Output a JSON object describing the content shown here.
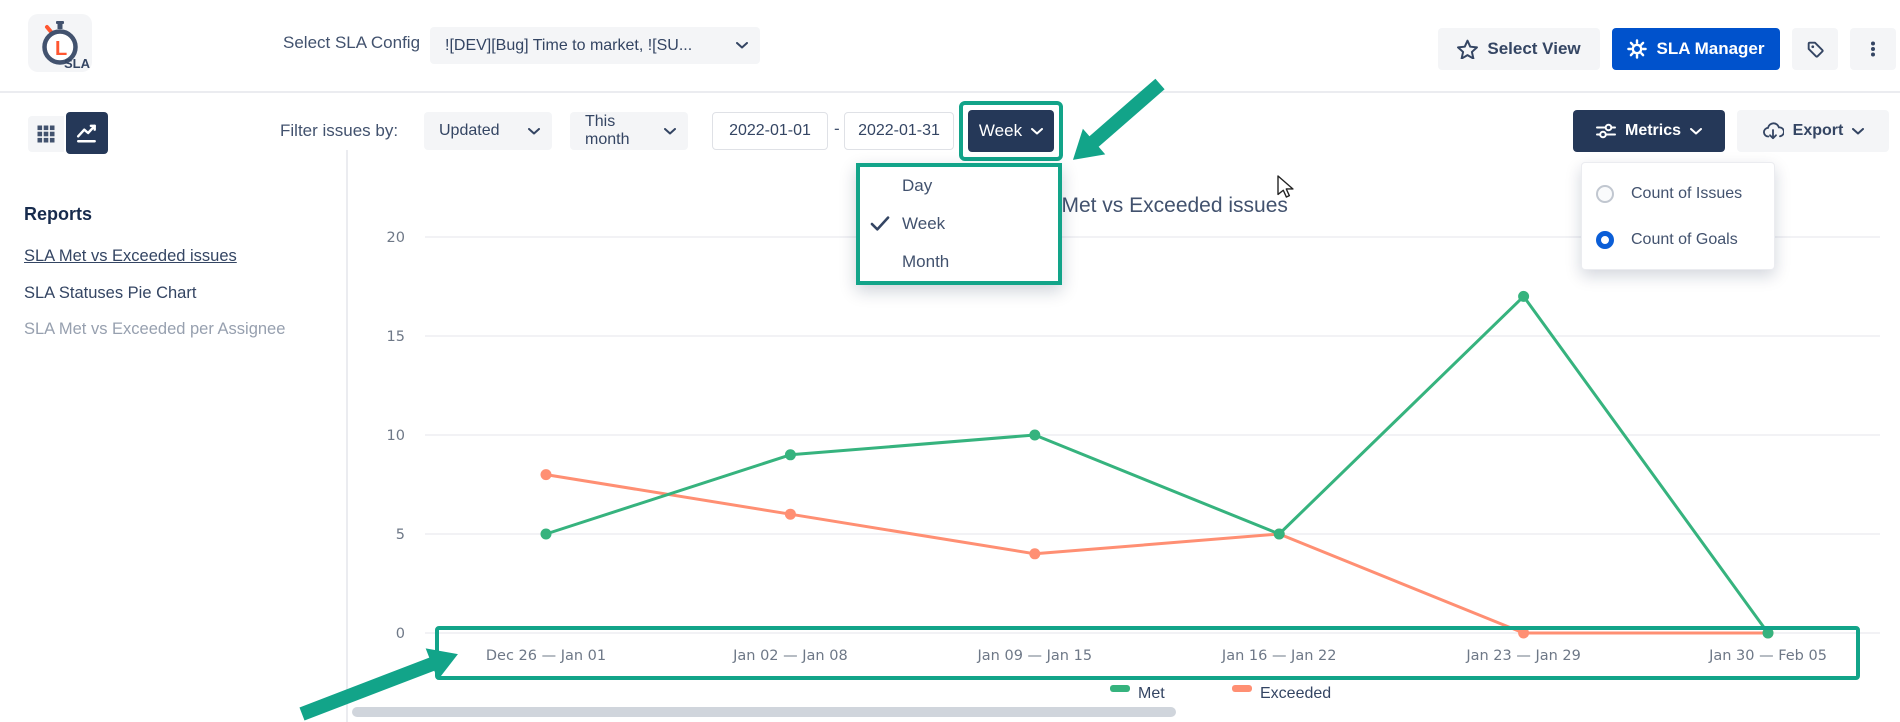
{
  "header": {
    "logo_letter": "L",
    "logo_text": "SLA",
    "config_label": "Select SLA Config",
    "config_value": "![DEV][Bug] Time to market, ![SU...",
    "select_view_label": "Select View",
    "sla_manager_label": "SLA Manager"
  },
  "toolbar": {
    "filter_label": "Filter issues by:",
    "field_select_value": "Updated",
    "range_select_value": "This month",
    "date_from": "2022-01-01",
    "date_separator": "-",
    "date_to": "2022-01-31",
    "granularity_value": "Week",
    "granularity_options": [
      "Day",
      "Week",
      "Month"
    ],
    "granularity_selected": "Week",
    "metrics_label": "Metrics",
    "export_label": "Export",
    "metrics_options": [
      {
        "label": "Count of Issues",
        "selected": false
      },
      {
        "label": "Count of Goals",
        "selected": true
      }
    ]
  },
  "sidebar": {
    "heading": "Reports",
    "items": [
      {
        "label": "SLA Met vs Exceeded issues",
        "active": true
      },
      {
        "label": "SLA Statuses Pie Chart",
        "active": false
      },
      {
        "label": "SLA Met vs Exceeded per Assignee",
        "active": false
      }
    ]
  },
  "chart_data": {
    "type": "line",
    "title": "SLA Met vs Exceeded issues",
    "categories": [
      "Dec 26 — Jan 01",
      "Jan 02 — Jan 08",
      "Jan 09 — Jan 15",
      "Jan 16 — Jan 22",
      "Jan 23 — Jan 29",
      "Jan 30 — Feb 05"
    ],
    "series": [
      {
        "name": "Met",
        "color": "#36B37E",
        "values": [
          5,
          9,
          10,
          5,
          17,
          0
        ]
      },
      {
        "name": "Exceeded",
        "color": "#FF8F73",
        "values": [
          8,
          6,
          4,
          5,
          0,
          0
        ]
      }
    ],
    "xlabel": "",
    "ylabel": "",
    "ylim": [
      0,
      20
    ],
    "yticks": [
      0,
      5,
      10,
      15,
      20
    ],
    "grid": true,
    "legend_position": "bottom"
  },
  "colors": {
    "annotation_teal": "#12A489",
    "met_green": "#36B37E",
    "exceeded_orange": "#FF8F73",
    "primary_blue": "#0052CC",
    "dark_navy": "#253858",
    "radio_blue": "#0B5ED7"
  }
}
